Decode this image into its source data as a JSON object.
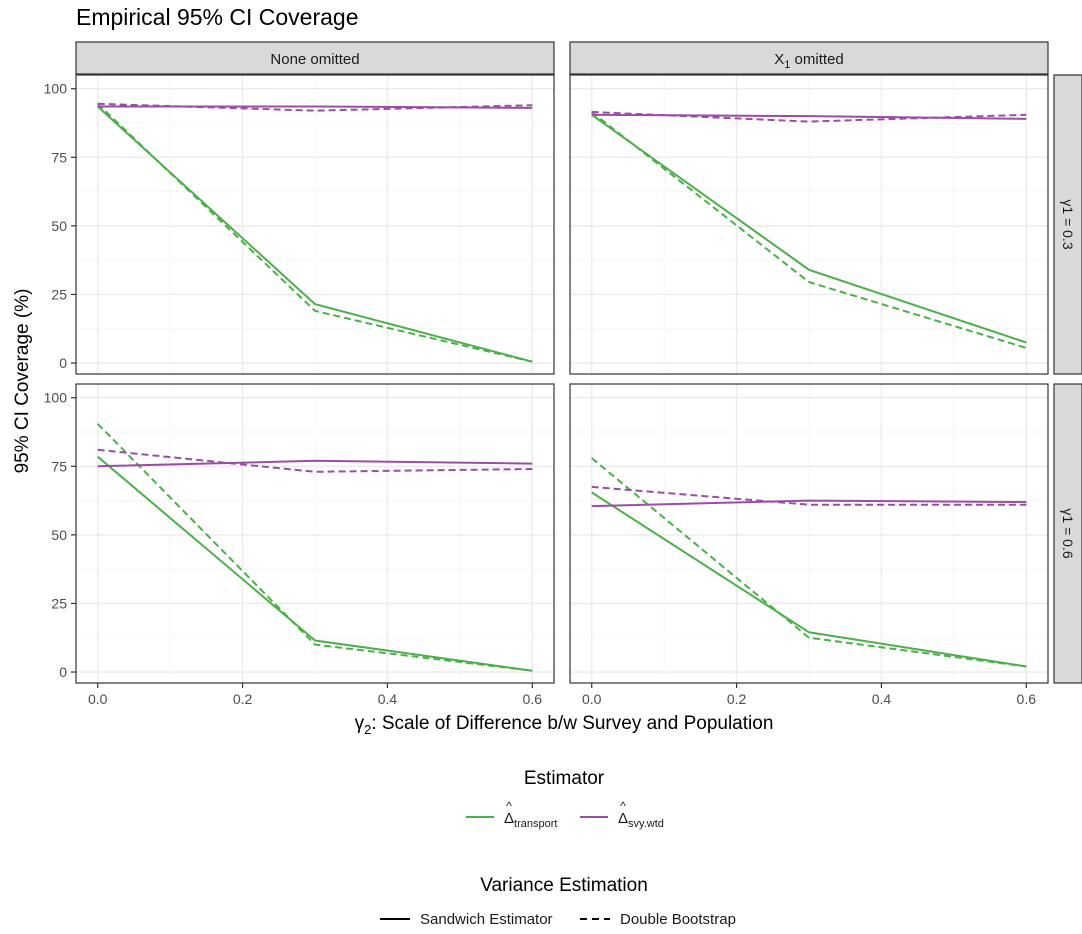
{
  "chart_data": {
    "type": "line",
    "title": "Empirical 95% CI Coverage",
    "xlabel": "γ2: Scale of Difference b/w Survey and Population",
    "ylabel": "95% CI Coverage (%)",
    "xlim": [
      -0.03,
      0.63
    ],
    "ylim": [
      -4,
      105
    ],
    "x_ticks": [
      0.0,
      0.2,
      0.4,
      0.6
    ],
    "x_tick_labels": [
      "0.0",
      "0.2",
      "0.4",
      "0.6"
    ],
    "y_ticks": [
      0,
      25,
      50,
      75,
      100
    ],
    "y_tick_labels": [
      "0",
      "25",
      "50",
      "75",
      "100"
    ],
    "grid": true,
    "facet_cols": [
      {
        "label": "None omitted",
        "main": "None omitted",
        "sub": ""
      },
      {
        "label": "X1 omitted",
        "main": "X",
        "sub": "1",
        "suffix": " omitted"
      }
    ],
    "facet_rows": [
      {
        "label": "γ1 = 0.3"
      },
      {
        "label": "γ1 = 0.6"
      }
    ],
    "colors": {
      "transport": "#4DAF4A",
      "svy_wtd": "#984EA3",
      "strip_fill": "#D9D9D9",
      "strip_border": "#333333",
      "grid_major": "#EBEBEB",
      "grid_minor": "#F5F5F5",
      "axis_text": "#4D4D4D"
    },
    "x": [
      0.0,
      0.3,
      0.6
    ],
    "panels": [
      {
        "row": 0,
        "col": 0,
        "series": [
          {
            "estimator": "transport",
            "variance": "sandwich",
            "values": [
              93.5,
              21.5,
              0.5
            ]
          },
          {
            "estimator": "transport",
            "variance": "bootstrap",
            "values": [
              94.5,
              19.0,
              0.5
            ]
          },
          {
            "estimator": "svy_wtd",
            "variance": "sandwich",
            "values": [
              93.5,
              93.5,
              93.0
            ]
          },
          {
            "estimator": "svy_wtd",
            "variance": "bootstrap",
            "values": [
              94.5,
              92.0,
              94.0
            ]
          }
        ]
      },
      {
        "row": 0,
        "col": 1,
        "series": [
          {
            "estimator": "transport",
            "variance": "sandwich",
            "values": [
              90.5,
              34.0,
              7.5
            ]
          },
          {
            "estimator": "transport",
            "variance": "bootstrap",
            "values": [
              91.5,
              29.5,
              5.5
            ]
          },
          {
            "estimator": "svy_wtd",
            "variance": "sandwich",
            "values": [
              90.5,
              90.0,
              89.0
            ]
          },
          {
            "estimator": "svy_wtd",
            "variance": "bootstrap",
            "values": [
              91.5,
              88.0,
              90.5
            ]
          }
        ]
      },
      {
        "row": 1,
        "col": 0,
        "series": [
          {
            "estimator": "transport",
            "variance": "sandwich",
            "values": [
              78.5,
              11.5,
              0.5
            ]
          },
          {
            "estimator": "transport",
            "variance": "bootstrap",
            "values": [
              90.5,
              10.0,
              0.5
            ]
          },
          {
            "estimator": "svy_wtd",
            "variance": "sandwich",
            "values": [
              75.0,
              77.0,
              76.0
            ]
          },
          {
            "estimator": "svy_wtd",
            "variance": "bootstrap",
            "values": [
              81.0,
              73.0,
              74.0
            ]
          }
        ]
      },
      {
        "row": 1,
        "col": 1,
        "series": [
          {
            "estimator": "transport",
            "variance": "sandwich",
            "values": [
              65.5,
              14.5,
              2.0
            ]
          },
          {
            "estimator": "transport",
            "variance": "bootstrap",
            "values": [
              78.0,
              12.5,
              2.0
            ]
          },
          {
            "estimator": "svy_wtd",
            "variance": "sandwich",
            "values": [
              60.5,
              62.5,
              62.0
            ]
          },
          {
            "estimator": "svy_wtd",
            "variance": "bootstrap",
            "values": [
              67.5,
              61.0,
              61.0
            ]
          }
        ]
      }
    ],
    "legend_estimator": {
      "title": "Estimator",
      "placement": "bottom",
      "items": [
        {
          "key": "transport",
          "symbol": "Δ",
          "sub": "transport",
          "label": "Δ̂ transport"
        },
        {
          "key": "svy_wtd",
          "symbol": "Δ",
          "sub": "svy.wtd",
          "label": "Δ̂ svy.wtd"
        }
      ]
    },
    "legend_variance": {
      "title": "Variance Estimation",
      "placement": "bottom",
      "items": [
        {
          "key": "sandwich",
          "label": "Sandwich Estimator",
          "dash": "solid"
        },
        {
          "key": "bootstrap",
          "label": "Double Bootstrap",
          "dash": "dashed"
        }
      ]
    }
  }
}
